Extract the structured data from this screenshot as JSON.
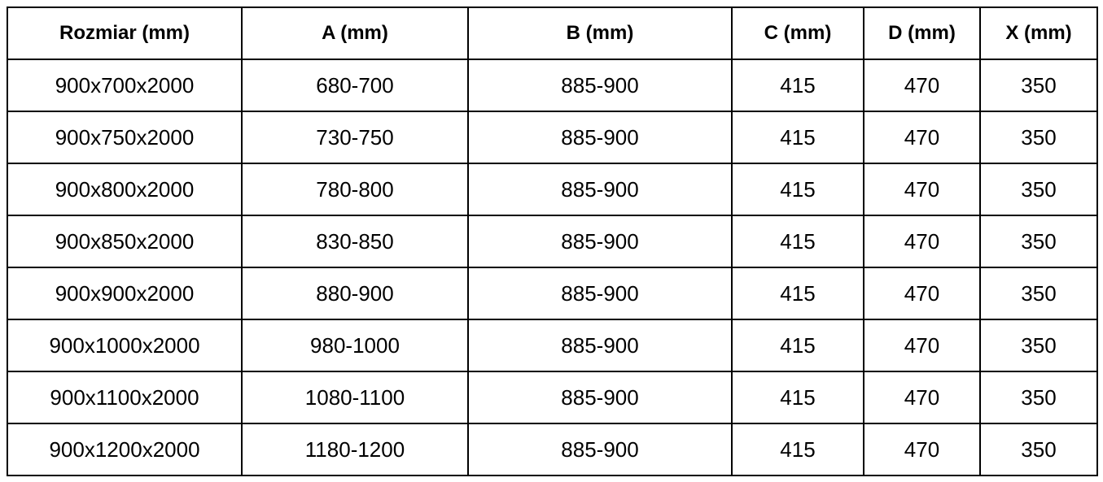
{
  "table": {
    "headers": [
      "Rozmiar (mm)",
      "A (mm)",
      "B (mm)",
      "C (mm)",
      "D (mm)",
      "X (mm)"
    ],
    "rows": [
      [
        "900x700x2000",
        "680-700",
        "885-900",
        "415",
        "470",
        "350"
      ],
      [
        "900x750x2000",
        "730-750",
        "885-900",
        "415",
        "470",
        "350"
      ],
      [
        "900x800x2000",
        "780-800",
        "885-900",
        "415",
        "470",
        "350"
      ],
      [
        "900x850x2000",
        "830-850",
        "885-900",
        "415",
        "470",
        "350"
      ],
      [
        "900x900x2000",
        "880-900",
        "885-900",
        "415",
        "470",
        "350"
      ],
      [
        "900x1000x2000",
        "980-1000",
        "885-900",
        "415",
        "470",
        "350"
      ],
      [
        "900x1100x2000",
        "1080-1100",
        "885-900",
        "415",
        "470",
        "350"
      ],
      [
        "900x1200x2000",
        "1180-1200",
        "885-900",
        "415",
        "470",
        "350"
      ]
    ]
  }
}
